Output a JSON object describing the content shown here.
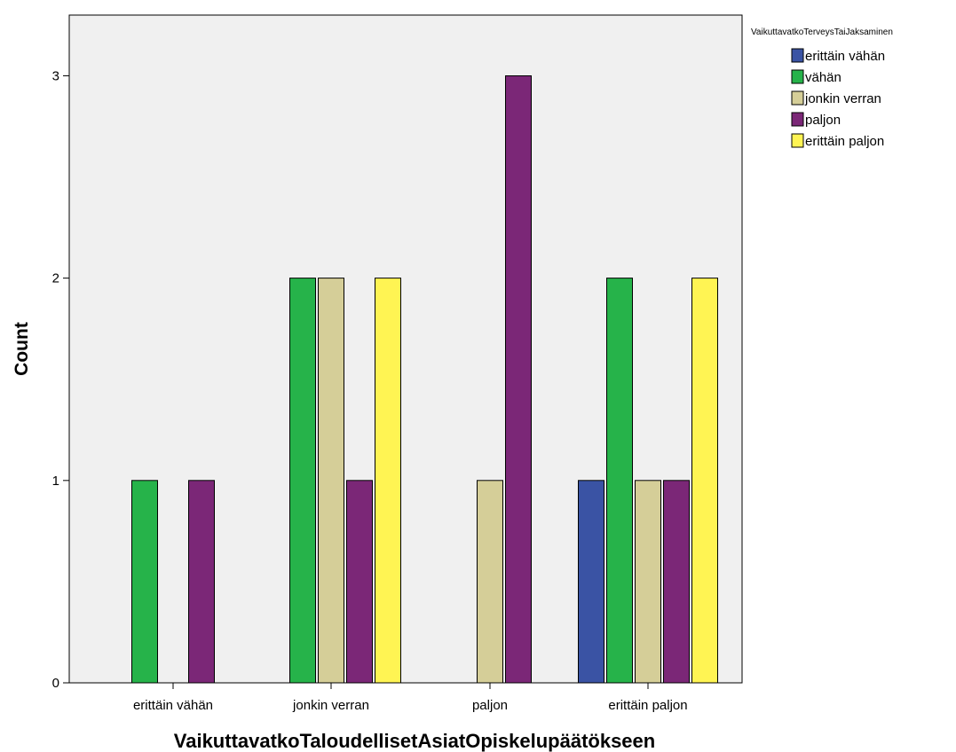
{
  "chart_data": {
    "type": "bar",
    "xlabel": "VaikuttavatkoTaloudellisetAsiatOpiskelupäätökseen",
    "ylabel": "Count",
    "categories": [
      "erittäin vähän",
      "jonkin verran",
      "paljon",
      "erittäin paljon"
    ],
    "ylim": [
      0,
      3.3
    ],
    "yticks": [
      0,
      1,
      2,
      3
    ],
    "grid": false,
    "legend": {
      "title": "VaikuttavatkoTerveysTaiJaksaminen",
      "placement": "top-right"
    },
    "series": [
      {
        "name": "erittäin vähän",
        "color": "#3a53a4",
        "values": [
          0,
          0,
          0,
          1
        ]
      },
      {
        "name": "vähän",
        "color": "#26b34a",
        "values": [
          1,
          2,
          0,
          2
        ]
      },
      {
        "name": "jonkin verran",
        "color": "#d5ce98",
        "values": [
          0,
          2,
          1,
          1
        ]
      },
      {
        "name": "paljon",
        "color": "#7b2777",
        "values": [
          1,
          1,
          3,
          1
        ]
      },
      {
        "name": "erittäin paljon",
        "color": "#fff453",
        "values": [
          0,
          2,
          0,
          2
        ]
      }
    ]
  }
}
